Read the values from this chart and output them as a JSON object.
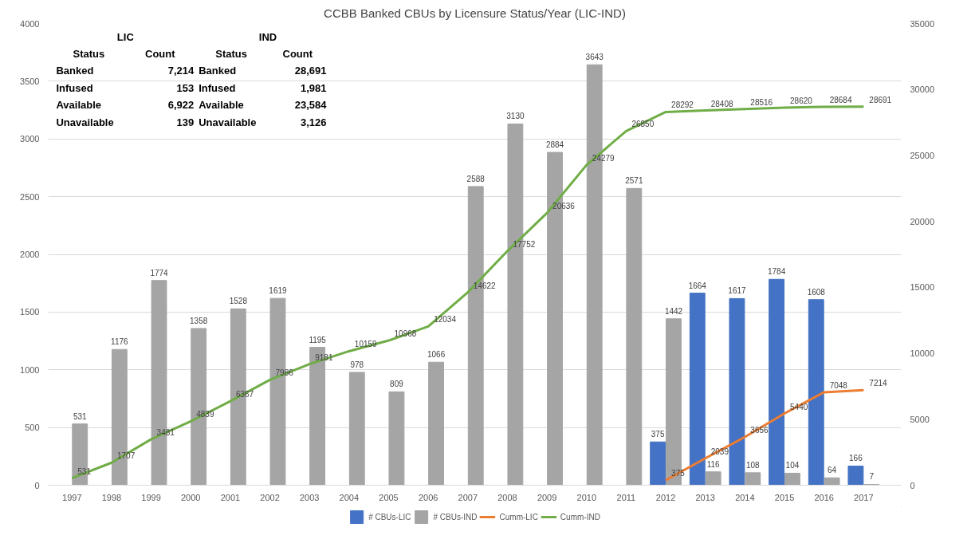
{
  "chart_data": {
    "type": "bar",
    "title": "CCBB Banked CBUs by Licensure Status/Year (LIC-IND)",
    "categories": [
      "1997",
      "1998",
      "1999",
      "2000",
      "2001",
      "2002",
      "2003",
      "2004",
      "2005",
      "2006",
      "2007",
      "2008",
      "2009",
      "2010",
      "2011",
      "2012",
      "2013",
      "2014",
      "2015",
      "2016",
      "2017"
    ],
    "series": [
      {
        "name": "# CBUs-LIC",
        "color": "#4472c4",
        "values": [
          null,
          null,
          null,
          null,
          null,
          null,
          null,
          null,
          null,
          null,
          null,
          null,
          null,
          null,
          null,
          375,
          1664,
          1617,
          1784,
          1608,
          166
        ]
      },
      {
        "name": "# CBUs-IND",
        "color": "#a5a5a5",
        "values": [
          531,
          1176,
          1774,
          1358,
          1528,
          1619,
          1195,
          978,
          809,
          1066,
          2588,
          3130,
          2884,
          3643,
          2571,
          1442,
          116,
          108,
          104,
          64,
          7
        ]
      },
      {
        "name": "Cumm-LIC",
        "type": "line",
        "axis": "y2",
        "color": "#ed7d31",
        "values": [
          null,
          null,
          null,
          null,
          null,
          null,
          null,
          null,
          null,
          null,
          null,
          null,
          null,
          null,
          null,
          375,
          2039,
          3656,
          5440,
          7048,
          7214
        ]
      },
      {
        "name": "Cumm-IND",
        "type": "line",
        "axis": "y2",
        "color": "#70ad47",
        "values": [
          531,
          1707,
          3481,
          4839,
          6367,
          7986,
          9181,
          10159,
          10968,
          12034,
          14622,
          17752,
          20636,
          24279,
          26850,
          28292,
          28408,
          28516,
          28620,
          28684,
          28691
        ]
      }
    ],
    "ylim": [
      0,
      4000
    ],
    "yticks": [
      0,
      500,
      1000,
      1500,
      2000,
      2500,
      3000,
      3500,
      4000
    ],
    "y2lim": [
      0,
      35000
    ],
    "y2ticks": [
      0,
      5000,
      10000,
      15000,
      20000,
      25000,
      30000,
      35000
    ],
    "grid": "y",
    "legend": "bottom",
    "data_labels": true,
    "marker": "none",
    "line_style": "solid",
    "annotations": [
      "LIC",
      "IND",
      "Status",
      "Count",
      "Status",
      "Count",
      "Banked",
      "7,214",
      "Banked",
      "28,691",
      "Infused",
      "153",
      "Infused",
      "1,981",
      "Available",
      "6,922",
      "Available",
      "23,584",
      "Unavailable",
      "139",
      "Unavailable",
      "3,126"
    ]
  }
}
